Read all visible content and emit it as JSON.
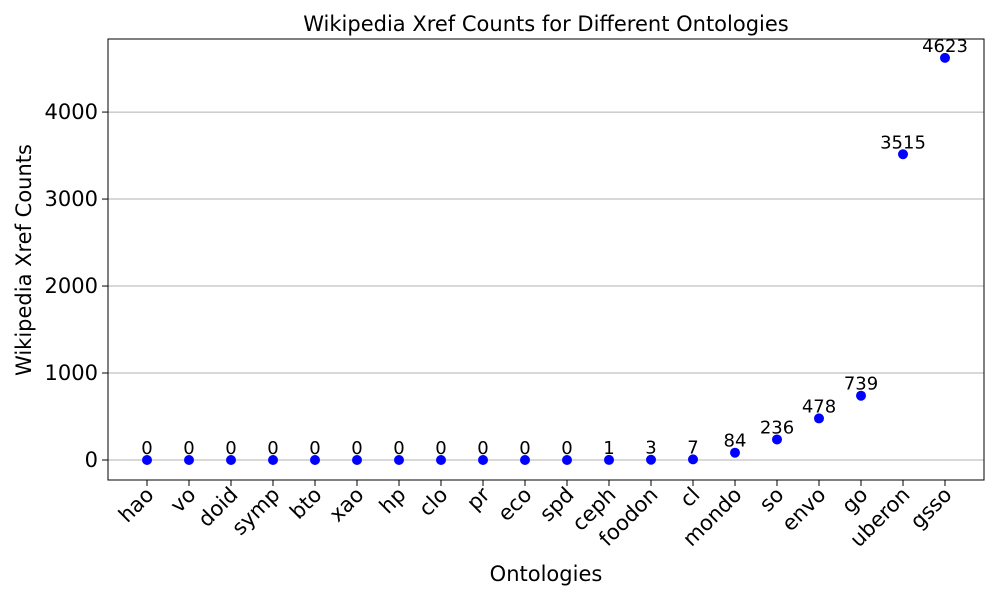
{
  "chart_data": {
    "type": "scatter",
    "title": "Wikipedia Xref Counts for Different Ontologies",
    "xlabel": "Ontologies",
    "ylabel": "Wikipedia Xref Counts",
    "categories": [
      "hao",
      "vo",
      "doid",
      "symp",
      "bto",
      "xao",
      "hp",
      "clo",
      "pr",
      "eco",
      "spd",
      "ceph",
      "foodon",
      "cl",
      "mondo",
      "so",
      "envo",
      "go",
      "uberon",
      "gsso"
    ],
    "values": [
      0,
      0,
      0,
      0,
      0,
      0,
      0,
      0,
      0,
      0,
      0,
      1,
      3,
      7,
      84,
      236,
      478,
      739,
      3515,
      4623
    ],
    "ylim": [
      -230,
      4840
    ],
    "yticks": [
      0,
      1000,
      2000,
      3000,
      4000
    ],
    "grid": "y-axis",
    "marker_color": "#0000ff"
  }
}
